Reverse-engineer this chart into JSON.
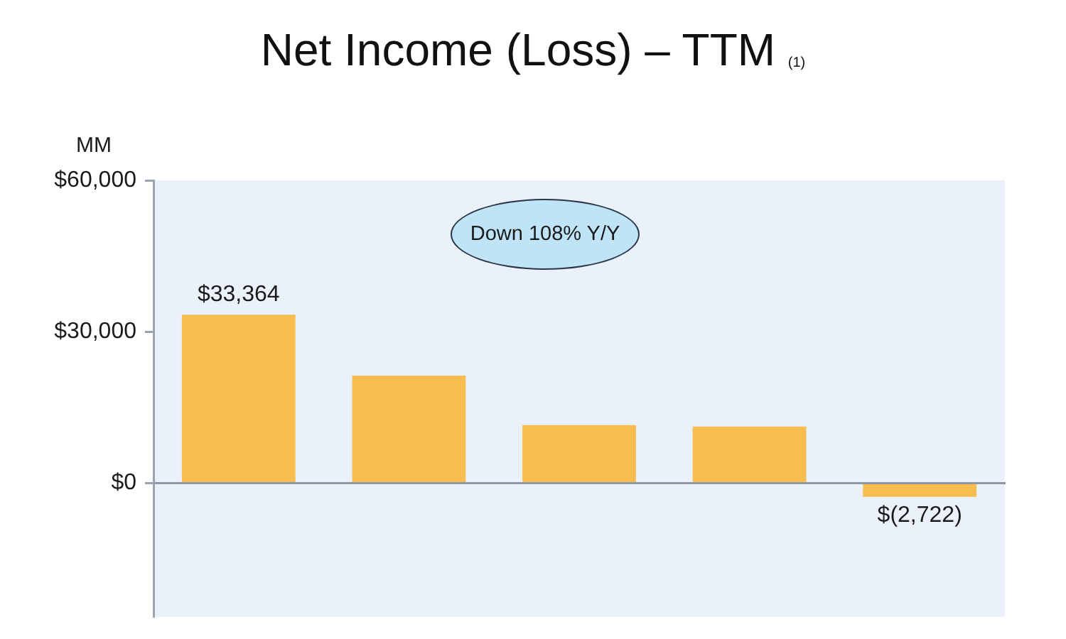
{
  "chart_data": {
    "type": "bar",
    "title": "Net Income (Loss) – TTM $_{(1)}$",
    "ylabel": "MM",
    "categories": [
      null,
      null,
      null,
      null,
      null
    ],
    "values": [
      33364,
      21300,
      11500,
      11200,
      -2722
    ],
    "value_labels": [
      "$33,364",
      null,
      null,
      null,
      "$(2,722)"
    ],
    "color": "#f8bd4f",
    "ylim": [
      -26500,
      60000
    ],
    "yticks": [
      {
        "value": 0,
        "label": "$0"
      },
      {
        "value": 30000,
        "label": "$30,000"
      },
      {
        "value": 60000,
        "label": "$60,000"
      }
    ],
    "annotations": [
      "Down 108% Y/Y"
    ]
  }
}
